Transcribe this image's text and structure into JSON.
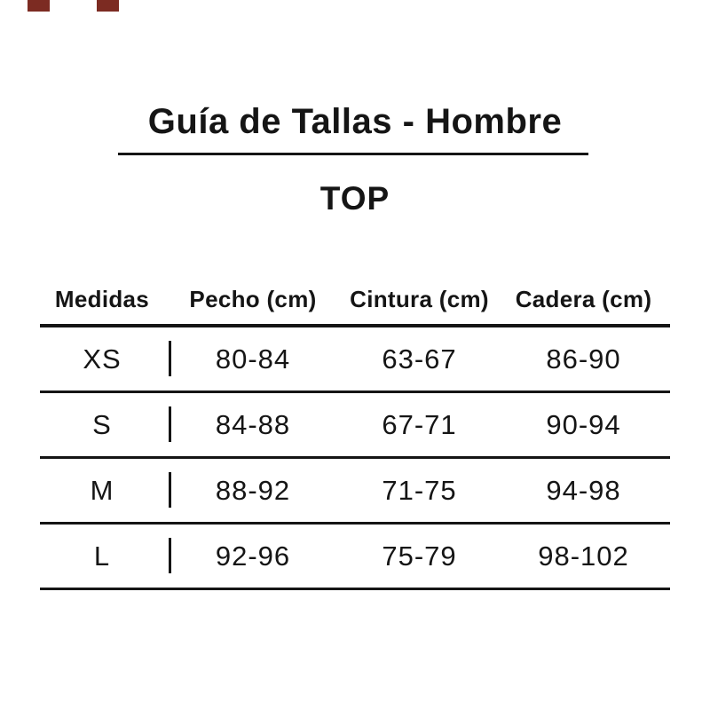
{
  "page": {
    "background": "#ffffff",
    "text_color": "#151515",
    "accent_mark_color": "#7c2b22"
  },
  "header": {
    "title": "Guía de Tallas - Hombre",
    "category": "TOP"
  },
  "table": {
    "columns": [
      "Medidas",
      "Pecho (cm)",
      "Cintura (cm)",
      "Cadera (cm)"
    ],
    "rows": [
      {
        "size": "XS",
        "pecho": "80-84",
        "cintura": "63-67",
        "cadera": "86-90"
      },
      {
        "size": "S",
        "pecho": "84-88",
        "cintura": "67-71",
        "cadera": "90-94"
      },
      {
        "size": "M",
        "pecho": "88-92",
        "cintura": "71-75",
        "cadera": "94-98"
      },
      {
        "size": "L",
        "pecho": "92-96",
        "cintura": "75-79",
        "cadera": "98-102"
      }
    ]
  },
  "chart_data": {
    "type": "table",
    "title": "Guía de Tallas - Hombre",
    "subtitle": "TOP",
    "columns": [
      "Medidas",
      "Pecho (cm)",
      "Cintura (cm)",
      "Cadera (cm)"
    ],
    "rows": [
      [
        "XS",
        "80-84",
        "63-67",
        "86-90"
      ],
      [
        "S",
        "84-88",
        "67-71",
        "90-94"
      ],
      [
        "M",
        "88-92",
        "71-75",
        "94-98"
      ],
      [
        "L",
        "92-96",
        "75-79",
        "98-102"
      ]
    ]
  }
}
